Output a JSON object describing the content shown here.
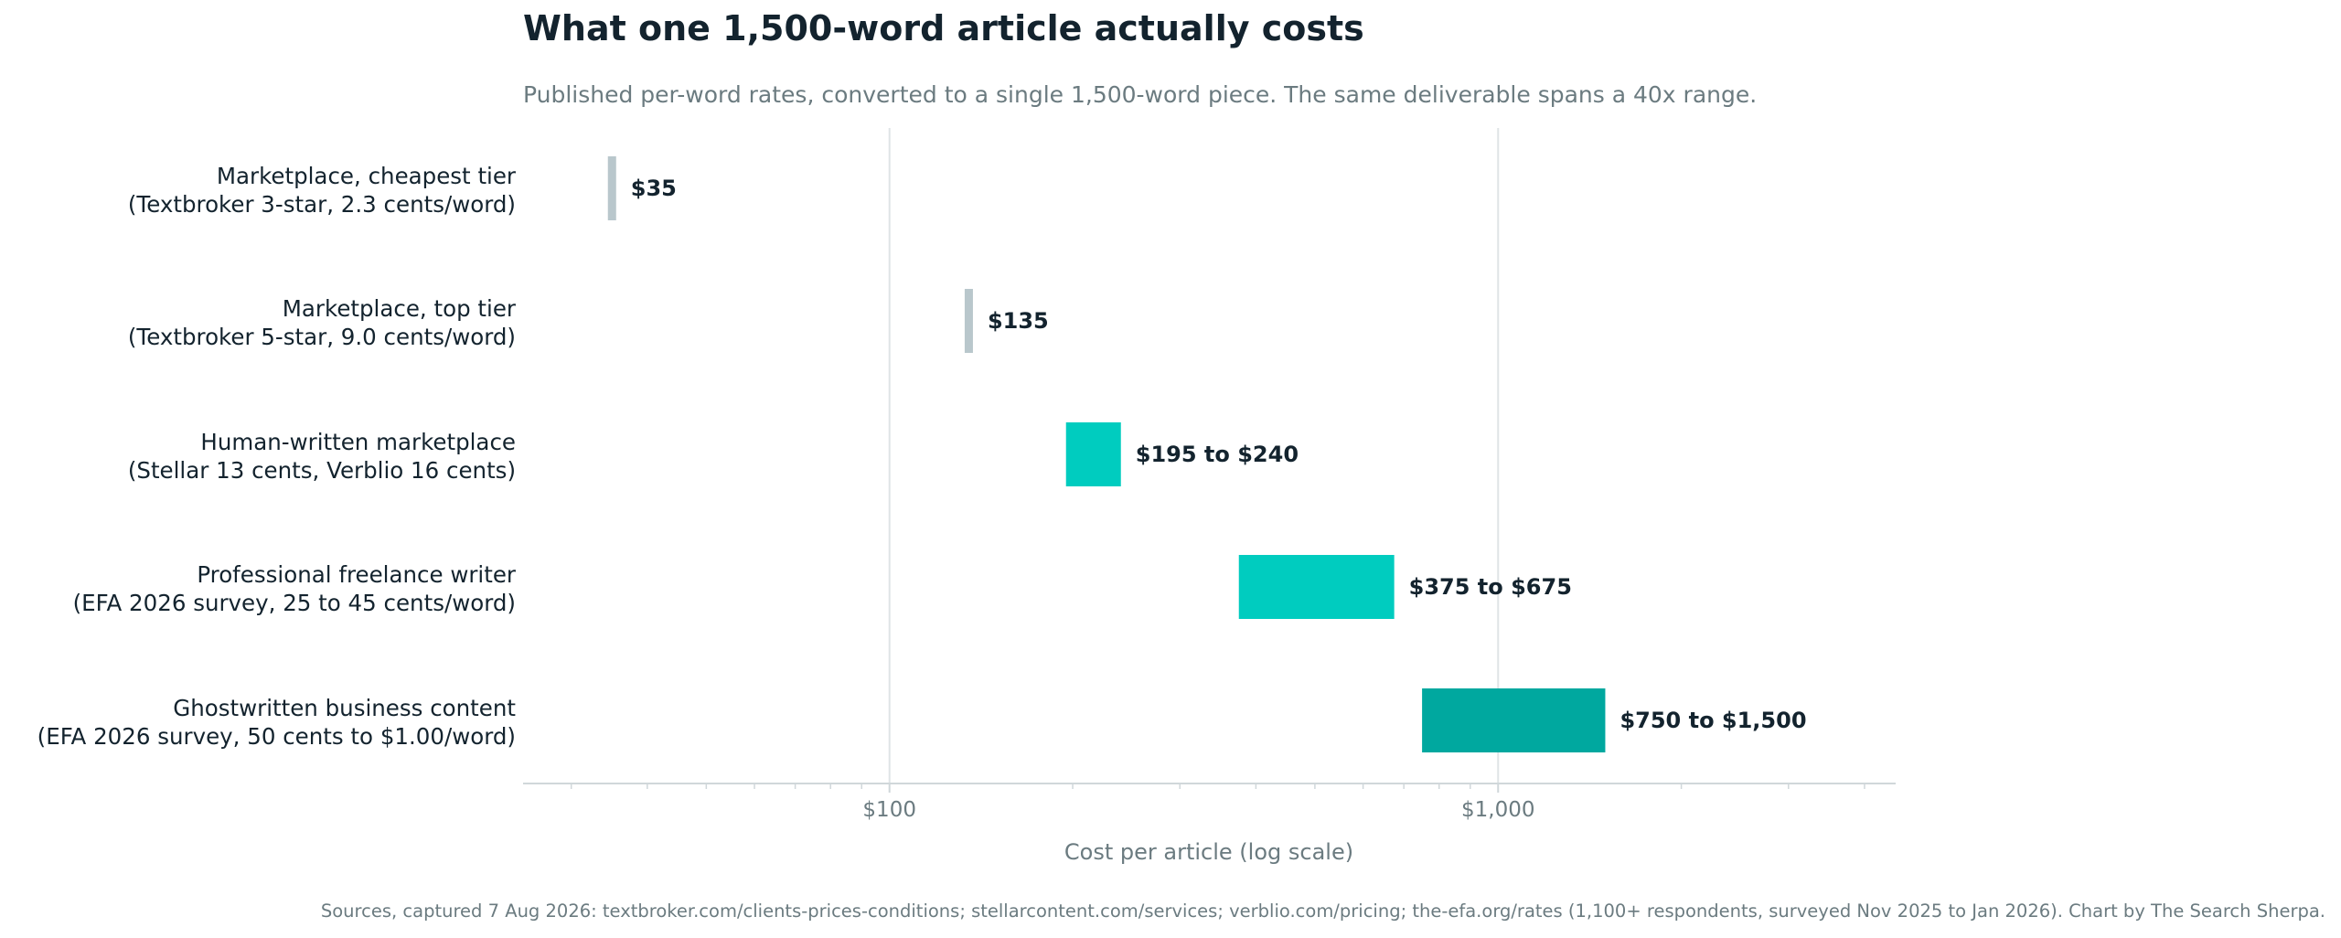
{
  "chart_data": {
    "type": "bar",
    "orientation": "horizontal",
    "title": "What one 1,500-word article actually costs",
    "subtitle": "Published per-word rates, converted to a single 1,500-word piece. The same deliverable spans a 40x range.",
    "xlabel": "Cost per article (log scale)",
    "x_scale": "log",
    "xlim": [
      25,
      4500
    ],
    "x_tick_labels": [
      {
        "value": 100,
        "label": "$100"
      },
      {
        "value": 1000,
        "label": "$1,000"
      }
    ],
    "grid": "vertical major gridlines at $100 and $1,000",
    "categories": [
      {
        "label_line1": "Marketplace, cheapest tier",
        "label_line2": "(Textbroker 3-star, 2.3 cents/word)",
        "low": 35,
        "high": 35,
        "value_label": "$35",
        "color": "#b9c7cc"
      },
      {
        "label_line1": "Marketplace, top tier",
        "label_line2": "(Textbroker 5-star, 9.0 cents/word)",
        "low": 135,
        "high": 135,
        "value_label": "$135",
        "color": "#b9c7cc"
      },
      {
        "label_line1": "Human-written marketplace",
        "label_line2": "(Stellar 13 cents, Verblio 16 cents)",
        "low": 195,
        "high": 240,
        "value_label": "$195 to $240",
        "color": "#00ccbf"
      },
      {
        "label_line1": "Professional freelance writer",
        "label_line2": "(EFA 2026 survey, 25 to 45 cents/word)",
        "low": 375,
        "high": 675,
        "value_label": "$375 to $675",
        "color": "#00ccbf"
      },
      {
        "label_line1": "Ghostwritten business content",
        "label_line2": "(EFA 2026 survey, 50 cents to $1.00/word)",
        "low": 750,
        "high": 1500,
        "value_label": "$750 to $1,500",
        "color": "#00a89f"
      }
    ],
    "footnote": "Sources, captured 7 Aug 2026: textbroker.com/clients-prices-conditions; stellarcontent.com/services; verblio.com/pricing; the-efa.org/rates (1,100+ respondents, surveyed Nov 2025 to Jan 2026). Chart by The Search Sherpa."
  },
  "colors": {
    "title": "#13232e",
    "subtitle": "#6b7b80",
    "category_label": "#13232e",
    "value_label": "#13232e",
    "axis_text": "#6b7b80",
    "gridline": "#dfe4e6",
    "axis_line": "#d0d7da",
    "footnote": "#6b7b80"
  }
}
